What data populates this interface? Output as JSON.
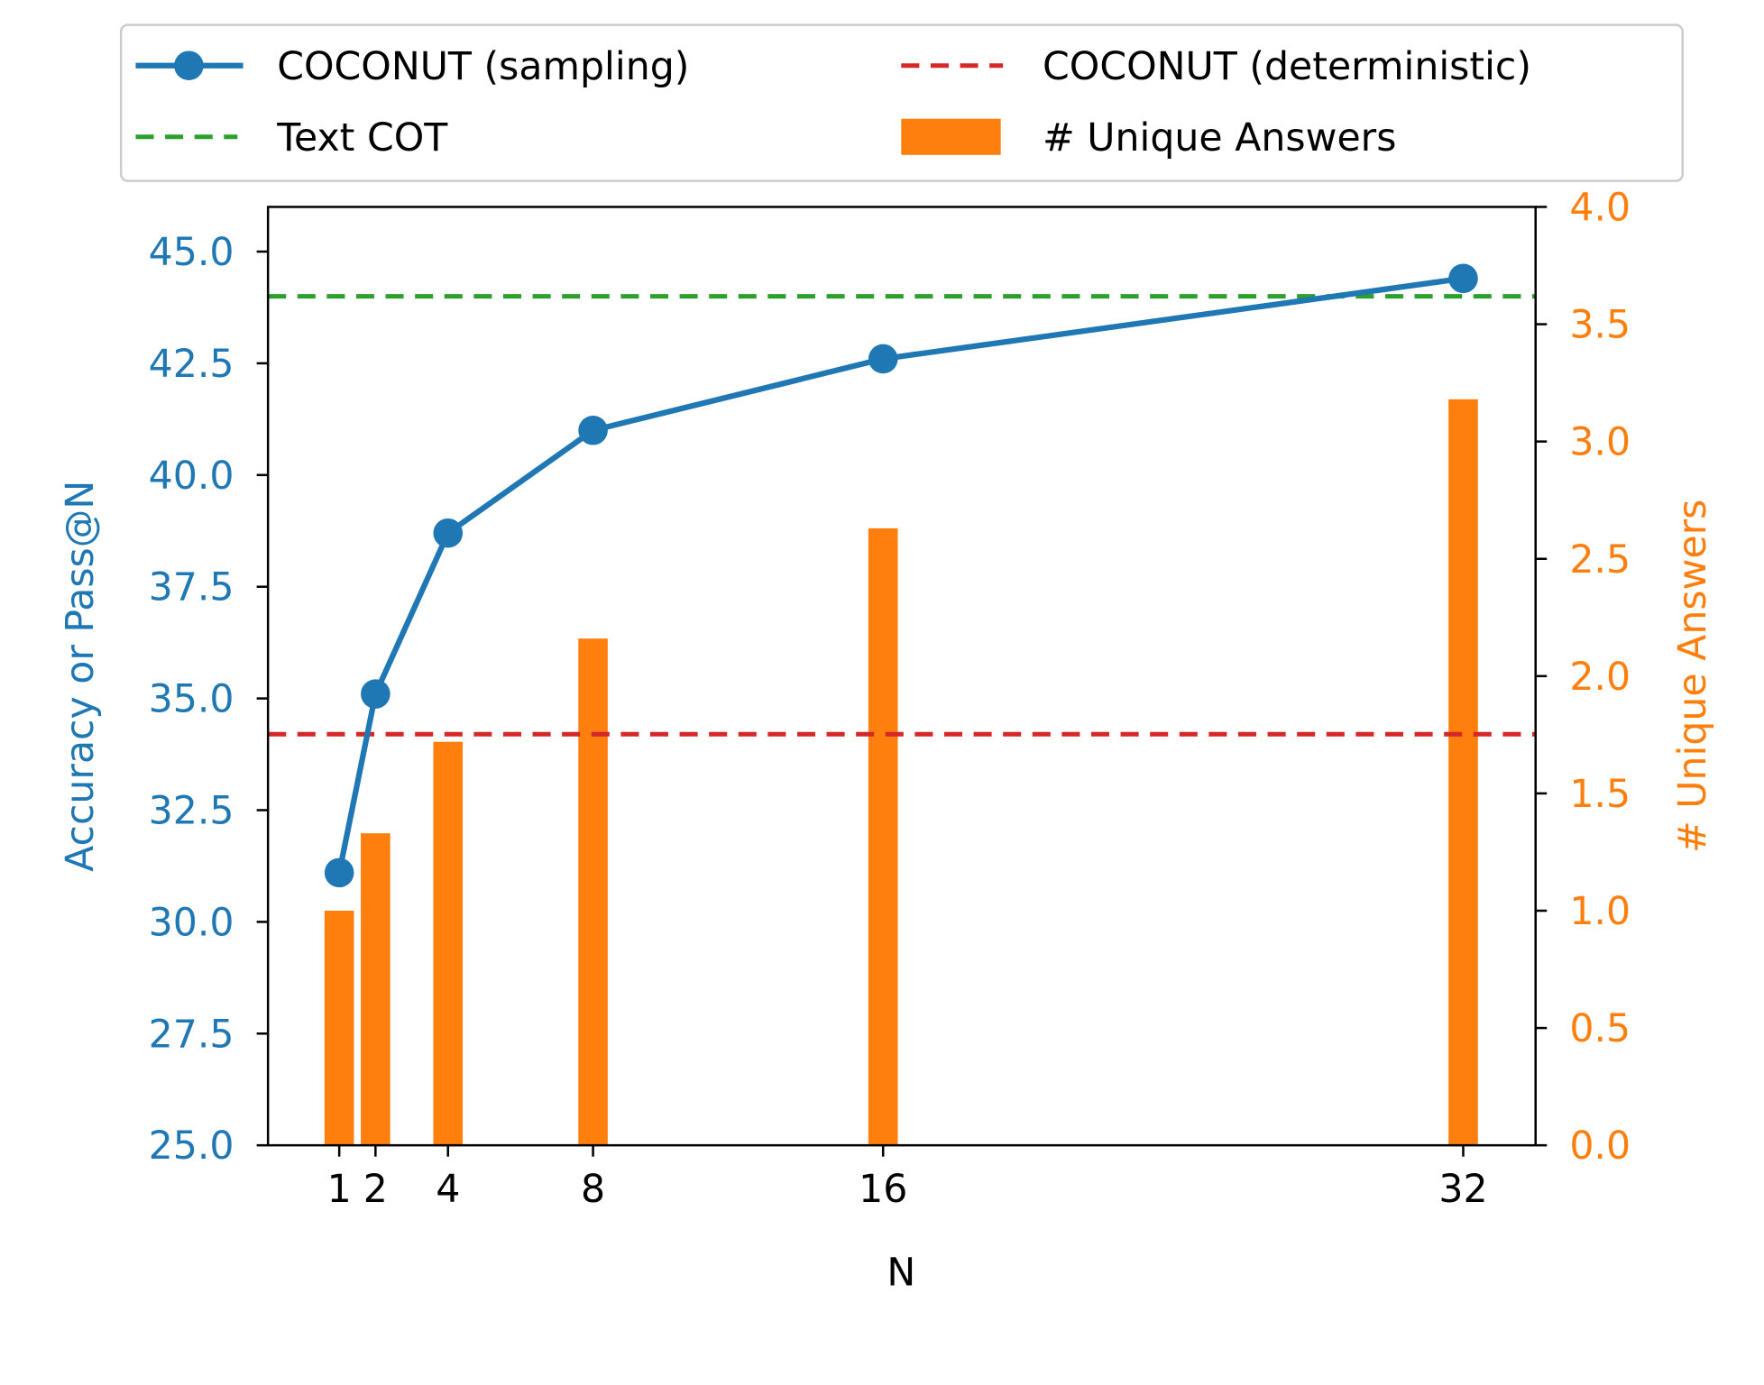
{
  "chart_data": {
    "type": "bar+line",
    "xlabel": "N",
    "ylabel_left": "Accuracy or Pass@N",
    "ylabel_right": "# Unique Answers",
    "x": [
      1,
      2,
      4,
      8,
      16,
      32
    ],
    "x_tick_labels": [
      "1",
      "2",
      "4",
      "8",
      "16",
      "32"
    ],
    "ylim_left": [
      25,
      46
    ],
    "ylim_right": [
      0,
      4
    ],
    "y_ticks_left": [
      "25.0",
      "27.5",
      "30.0",
      "32.5",
      "35.0",
      "37.5",
      "40.0",
      "42.5",
      "45.0"
    ],
    "y_ticks_right": [
      "0.0",
      "0.5",
      "1.0",
      "1.5",
      "2.0",
      "2.5",
      "3.0",
      "3.5",
      "4.0"
    ],
    "series": [
      {
        "name": "COCONUT (sampling)",
        "type": "line",
        "axis": "left",
        "color": "#1f77b4",
        "values": [
          31.1,
          35.1,
          38.7,
          41.0,
          42.6,
          44.4
        ]
      },
      {
        "name": "COCONUT (deterministic)",
        "type": "hline",
        "axis": "left",
        "color": "#d62728",
        "value": 34.2
      },
      {
        "name": "Text COT",
        "type": "hline",
        "axis": "left",
        "color": "#2ca02c",
        "value": 44.0
      },
      {
        "name": "# Unique Answers",
        "type": "bar",
        "axis": "right",
        "color": "#ff7f0e",
        "values": [
          1.0,
          1.33,
          1.72,
          2.16,
          2.63,
          3.18
        ]
      }
    ],
    "legend_order": [
      "COCONUT (sampling)",
      "COCONUT (deterministic)",
      "Text COT",
      "# Unique Answers"
    ],
    "legend_placement": "top-center, 2 columns",
    "grid": false
  }
}
